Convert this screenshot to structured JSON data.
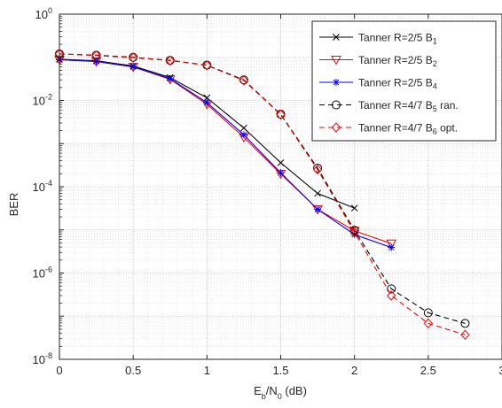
{
  "chart_data": {
    "type": "line",
    "xlabel": {
      "main": "E",
      "sub1": "b",
      "mid": "/N",
      "sub2": "0",
      "tail": " (dB)"
    },
    "ylabel": "BER",
    "xlim": [
      0,
      3
    ],
    "ylim_log10": [
      -8,
      0
    ],
    "yscale": "log",
    "grid": "on (major and minor)",
    "legend_position": "top-right",
    "x_ticks": [
      "0",
      "0.5",
      "1",
      "1.5",
      "2",
      "2.5",
      "3"
    ],
    "y_ticks": [
      {
        "base": "10",
        "exp": "-8"
      },
      {
        "base": "10",
        "exp": "-6"
      },
      {
        "base": "10",
        "exp": "-4"
      },
      {
        "base": "10",
        "exp": "-2"
      },
      {
        "base": "10",
        "exp": "0"
      }
    ],
    "series": [
      {
        "legend": {
          "text": "Tanner R=2/5 B",
          "sub": "1"
        },
        "color": "#000000",
        "marker": "x",
        "dash": "solid",
        "x": [
          0,
          0.25,
          0.5,
          0.75,
          1.0,
          1.25,
          1.5,
          1.75,
          2.0
        ],
        "y": [
          0.09,
          0.083,
          0.063,
          0.034,
          0.0115,
          0.0023,
          0.00036,
          7e-05,
          3.2e-05
        ]
      },
      {
        "legend": {
          "text": "Tanner R=2/5 B",
          "sub": "2"
        },
        "color": "#ff0000",
        "marker": "triangle-down",
        "dash": "solid",
        "x": [
          0,
          0.25,
          0.5,
          0.75,
          1.0,
          1.25,
          1.5,
          1.75,
          2.0,
          2.25
        ],
        "y": [
          0.088,
          0.08,
          0.06,
          0.031,
          0.0082,
          0.0014,
          0.0002,
          3e-05,
          9.5e-06,
          4.8e-06
        ]
      },
      {
        "legend": {
          "text": "Tanner R=2/5 B",
          "sub": "4"
        },
        "color": "#0000ff",
        "marker": "asterisk",
        "dash": "solid",
        "x": [
          0,
          0.25,
          0.5,
          0.75,
          1.0,
          1.25,
          1.5,
          1.75,
          2.0,
          2.25
        ],
        "y": [
          0.088,
          0.08,
          0.06,
          0.032,
          0.0089,
          0.0016,
          0.00021,
          3e-05,
          7.8e-06,
          3.9e-06
        ]
      },
      {
        "legend": {
          "text": "Tanner R=4/7 B",
          "sub": "5",
          "tail": " ran."
        },
        "color": "#000000",
        "marker": "circle",
        "dash": "dashed",
        "x": [
          0,
          0.25,
          0.5,
          0.75,
          1.0,
          1.25,
          1.5,
          1.75,
          2.0,
          2.25,
          2.5,
          2.75
        ],
        "y": [
          0.12,
          0.112,
          0.1,
          0.085,
          0.066,
          0.03,
          0.0048,
          0.00027,
          9.8e-06,
          4.3e-07,
          1.2e-07,
          6.8e-08
        ]
      },
      {
        "legend": {
          "text": "Tanner R=4/7 B",
          "sub": "6",
          "tail": " opt."
        },
        "color": "#ff0000",
        "marker": "diamond",
        "dash": "dashed",
        "x": [
          0,
          0.25,
          0.5,
          0.75,
          1.0,
          1.25,
          1.5,
          1.75,
          2.0,
          2.25,
          2.5,
          2.75
        ],
        "y": [
          0.12,
          0.11,
          0.098,
          0.084,
          0.065,
          0.029,
          0.0047,
          0.00025,
          8.8e-06,
          3e-07,
          6.8e-08,
          3.7e-08
        ]
      }
    ]
  }
}
